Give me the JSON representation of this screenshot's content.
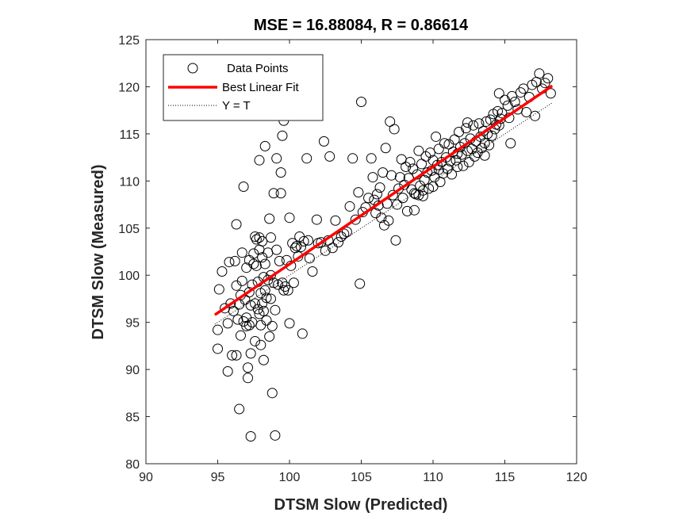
{
  "chart_data": {
    "type": "scatter",
    "title": "MSE = 16.88084, R = 0.86614",
    "xlabel": "DTSM Slow (Predicted)",
    "ylabel": "DTSM Slow (Measured)",
    "xlim": [
      90,
      120
    ],
    "ylim": [
      80,
      125
    ],
    "xticks": [
      "90",
      "95",
      "100",
      "105",
      "110",
      "115",
      "120"
    ],
    "yticks": [
      "80",
      "85",
      "90",
      "95",
      "100",
      "105",
      "110",
      "115",
      "120",
      "125"
    ],
    "grid": false,
    "legend_position": "top-left",
    "legend": {
      "data_points": "Data Points",
      "best_fit": "Best Linear Fit",
      "identity": "Y = T"
    },
    "colors": {
      "markers": "#000000",
      "best_fit": "#ff0000",
      "identity": "#000000"
    },
    "series": [
      {
        "name": "Data Points",
        "kind": "scatter",
        "points": [
          [
            95.0,
            92.2
          ],
          [
            95.0,
            94.2
          ],
          [
            95.1,
            98.5
          ],
          [
            95.3,
            100.4
          ],
          [
            95.5,
            96.5
          ],
          [
            95.7,
            89.8
          ],
          [
            95.7,
            94.9
          ],
          [
            95.8,
            101.4
          ],
          [
            95.9,
            97.0
          ],
          [
            96.0,
            91.5
          ],
          [
            96.1,
            96.2
          ],
          [
            96.2,
            101.5
          ],
          [
            96.3,
            98.9
          ],
          [
            96.3,
            105.4
          ],
          [
            96.3,
            91.5
          ],
          [
            96.4,
            95.3
          ],
          [
            96.5,
            85.8
          ],
          [
            96.5,
            96.9
          ],
          [
            96.6,
            97.9
          ],
          [
            96.6,
            93.6
          ],
          [
            96.7,
            99.4
          ],
          [
            96.7,
            102.4
          ],
          [
            96.8,
            109.4
          ],
          [
            96.9,
            97.4
          ],
          [
            97.0,
            95.5
          ],
          [
            97.0,
            94.6
          ],
          [
            97.0,
            100.8
          ],
          [
            97.1,
            90.2
          ],
          [
            97.1,
            89.1
          ],
          [
            97.2,
            101.6
          ],
          [
            97.2,
            98.2
          ],
          [
            97.2,
            94.7
          ],
          [
            97.3,
            91.7
          ],
          [
            97.3,
            82.9
          ],
          [
            97.4,
            95.0
          ],
          [
            97.4,
            99.0
          ],
          [
            97.5,
            101.2
          ],
          [
            97.5,
            102.3
          ],
          [
            97.6,
            97.0
          ],
          [
            97.6,
            93.0
          ],
          [
            97.7,
            103.8
          ],
          [
            97.7,
            101.0
          ],
          [
            97.8,
            96.4
          ],
          [
            97.8,
            99.3
          ],
          [
            97.9,
            95.9
          ],
          [
            97.9,
            104.0
          ],
          [
            97.9,
            102.7
          ],
          [
            98.0,
            98.1
          ],
          [
            98.0,
            94.7
          ],
          [
            98.0,
            92.6
          ],
          [
            98.1,
            97.0
          ],
          [
            98.1,
            103.6
          ],
          [
            98.1,
            101.9
          ],
          [
            98.2,
            99.8
          ],
          [
            98.2,
            96.2
          ],
          [
            98.2,
            91.0
          ],
          [
            98.3,
            98.4
          ],
          [
            98.3,
            101.2
          ],
          [
            98.4,
            95.2
          ],
          [
            98.4,
            97.6
          ],
          [
            98.5,
            102.4
          ],
          [
            98.5,
            99.5
          ],
          [
            98.6,
            93.5
          ],
          [
            98.6,
            106.0
          ],
          [
            98.7,
            100.0
          ],
          [
            98.7,
            97.5
          ],
          [
            98.8,
            87.5
          ],
          [
            98.8,
            94.6
          ],
          [
            98.9,
            108.7
          ],
          [
            98.9,
            99.2
          ],
          [
            99.0,
            96.3
          ],
          [
            99.0,
            83.0
          ],
          [
            99.1,
            112.4
          ],
          [
            99.1,
            102.7
          ],
          [
            99.2,
            99.0
          ],
          [
            99.3,
            101.5
          ],
          [
            99.4,
            108.7
          ],
          [
            99.4,
            110.9
          ],
          [
            99.5,
            114.8
          ],
          [
            99.5,
            99.2
          ],
          [
            99.6,
            98.4
          ],
          [
            99.7,
            98.8
          ],
          [
            99.8,
            101.6
          ],
          [
            99.9,
            98.4
          ],
          [
            100.0,
            94.9
          ],
          [
            100.0,
            106.1
          ],
          [
            100.1,
            101.0
          ],
          [
            100.2,
            103.4
          ],
          [
            100.3,
            99.2
          ],
          [
            100.4,
            102.9
          ],
          [
            100.5,
            103.1
          ],
          [
            100.6,
            102.0
          ],
          [
            100.7,
            104.1
          ],
          [
            100.8,
            103.0
          ],
          [
            100.9,
            93.8
          ],
          [
            101.0,
            103.6
          ],
          [
            101.2,
            112.4
          ],
          [
            101.3,
            103.7
          ],
          [
            101.4,
            101.8
          ],
          [
            101.6,
            100.4
          ],
          [
            101.9,
            105.9
          ],
          [
            102.0,
            103.4
          ],
          [
            102.2,
            103.5
          ],
          [
            102.4,
            114.2
          ],
          [
            102.5,
            102.6
          ],
          [
            102.7,
            103.7
          ],
          [
            102.8,
            112.6
          ],
          [
            103.0,
            102.9
          ],
          [
            103.2,
            105.8
          ],
          [
            103.4,
            103.5
          ],
          [
            103.6,
            104.1
          ],
          [
            103.8,
            104.4
          ],
          [
            104.0,
            104.6
          ],
          [
            104.2,
            107.3
          ],
          [
            104.4,
            112.4
          ],
          [
            104.6,
            105.9
          ],
          [
            104.8,
            108.8
          ],
          [
            104.9,
            99.1
          ],
          [
            105.0,
            118.4
          ],
          [
            105.1,
            106.7
          ],
          [
            105.3,
            107.2
          ],
          [
            105.5,
            108.2
          ],
          [
            105.7,
            112.4
          ],
          [
            105.8,
            110.4
          ],
          [
            105.9,
            108.0
          ],
          [
            106.0,
            106.6
          ],
          [
            106.1,
            108.6
          ],
          [
            106.2,
            107.4
          ],
          [
            106.3,
            109.3
          ],
          [
            106.4,
            106.1
          ],
          [
            106.5,
            110.9
          ],
          [
            106.6,
            105.3
          ],
          [
            106.7,
            113.5
          ],
          [
            106.8,
            107.6
          ],
          [
            106.9,
            105.8
          ],
          [
            107.0,
            116.3
          ],
          [
            107.1,
            110.6
          ],
          [
            107.2,
            108.5
          ],
          [
            107.3,
            115.5
          ],
          [
            107.4,
            103.7
          ],
          [
            107.5,
            107.5
          ],
          [
            107.6,
            109.2
          ],
          [
            107.7,
            110.4
          ],
          [
            107.8,
            112.3
          ],
          [
            107.9,
            108.2
          ],
          [
            108.0,
            109.6
          ],
          [
            108.1,
            111.5
          ],
          [
            108.2,
            106.8
          ],
          [
            108.3,
            110.3
          ],
          [
            108.4,
            112.0
          ],
          [
            108.5,
            109.1
          ],
          [
            108.6,
            111.3
          ],
          [
            108.7,
            106.9
          ],
          [
            108.8,
            108.6
          ],
          [
            108.9,
            110.7
          ],
          [
            109.0,
            113.2
          ],
          [
            109.1,
            109.5
          ],
          [
            109.2,
            111.8
          ],
          [
            109.3,
            108.4
          ],
          [
            109.4,
            110.1
          ],
          [
            109.5,
            112.6
          ],
          [
            109.6,
            110.9
          ],
          [
            109.7,
            109.2
          ],
          [
            109.8,
            113.0
          ],
          [
            109.9,
            111.1
          ],
          [
            110.0,
            112.2
          ],
          [
            110.1,
            110.4
          ],
          [
            110.2,
            114.7
          ],
          [
            110.3,
            111.7
          ],
          [
            110.4,
            113.4
          ],
          [
            110.5,
            109.9
          ],
          [
            110.6,
            112.0
          ],
          [
            110.7,
            110.8
          ],
          [
            110.8,
            114.0
          ],
          [
            110.9,
            112.5
          ],
          [
            111.0,
            111.3
          ],
          [
            111.1,
            113.9
          ],
          [
            111.2,
            112.1
          ],
          [
            111.3,
            110.7
          ],
          [
            111.4,
            113.1
          ],
          [
            111.5,
            114.4
          ],
          [
            111.6,
            112.2
          ],
          [
            111.7,
            111.5
          ],
          [
            111.8,
            115.2
          ],
          [
            111.9,
            113.6
          ],
          [
            112.0,
            112.8
          ],
          [
            112.1,
            111.6
          ],
          [
            112.2,
            114.0
          ],
          [
            112.3,
            115.6
          ],
          [
            112.4,
            113.2
          ],
          [
            112.5,
            112.0
          ],
          [
            112.6,
            114.5
          ],
          [
            112.7,
            113.4
          ],
          [
            112.8,
            115.9
          ],
          [
            112.9,
            112.6
          ],
          [
            113.0,
            114.2
          ],
          [
            113.1,
            113.0
          ],
          [
            113.2,
            116.1
          ],
          [
            113.3,
            114.7
          ],
          [
            113.4,
            113.5
          ],
          [
            113.5,
            115.3
          ],
          [
            113.6,
            114.0
          ],
          [
            113.7,
            116.3
          ],
          [
            113.8,
            115.0
          ],
          [
            113.9,
            113.8
          ],
          [
            114.0,
            116.5
          ],
          [
            114.1,
            114.8
          ],
          [
            114.2,
            117.1
          ],
          [
            114.3,
            115.5
          ],
          [
            114.4,
            116.0
          ],
          [
            114.5,
            117.4
          ],
          [
            114.6,
            115.9
          ],
          [
            114.7,
            116.6
          ],
          [
            114.8,
            117.2
          ],
          [
            115.0,
            118.6
          ],
          [
            115.2,
            118.0
          ],
          [
            115.3,
            116.7
          ],
          [
            115.5,
            119.0
          ],
          [
            115.7,
            118.4
          ],
          [
            115.9,
            117.6
          ],
          [
            116.1,
            119.4
          ],
          [
            116.3,
            119.8
          ],
          [
            116.5,
            117.3
          ],
          [
            116.7,
            118.9
          ],
          [
            116.9,
            120.2
          ],
          [
            117.1,
            116.9
          ],
          [
            117.2,
            120.5
          ],
          [
            117.4,
            121.4
          ],
          [
            117.6,
            119.8
          ],
          [
            117.8,
            120.4
          ],
          [
            118.0,
            120.9
          ],
          [
            118.2,
            119.3
          ],
          [
            96.8,
            95.1
          ],
          [
            97.3,
            96.8
          ],
          [
            98.7,
            104.0
          ],
          [
            97.6,
            104.1
          ],
          [
            99.6,
            116.4
          ],
          [
            98.3,
            113.7
          ],
          [
            97.9,
            112.2
          ],
          [
            99.3,
            117.5
          ],
          [
            108.7,
            108.7
          ],
          [
            109.0,
            108.5
          ],
          [
            109.3,
            109.0
          ],
          [
            110.0,
            109.4
          ],
          [
            110.4,
            111.2
          ],
          [
            111.7,
            112.9
          ],
          [
            112.4,
            116.2
          ],
          [
            113.6,
            112.7
          ],
          [
            114.6,
            119.3
          ],
          [
            115.4,
            114.0
          ]
        ]
      },
      {
        "name": "Best Linear Fit",
        "kind": "line",
        "x": [
          94.8,
          118.3
        ],
        "y": [
          95.8,
          120.1
        ]
      },
      {
        "name": "Y = T",
        "kind": "line",
        "x": [
          94.8,
          118.3
        ],
        "y": [
          94.8,
          118.3
        ]
      }
    ]
  }
}
